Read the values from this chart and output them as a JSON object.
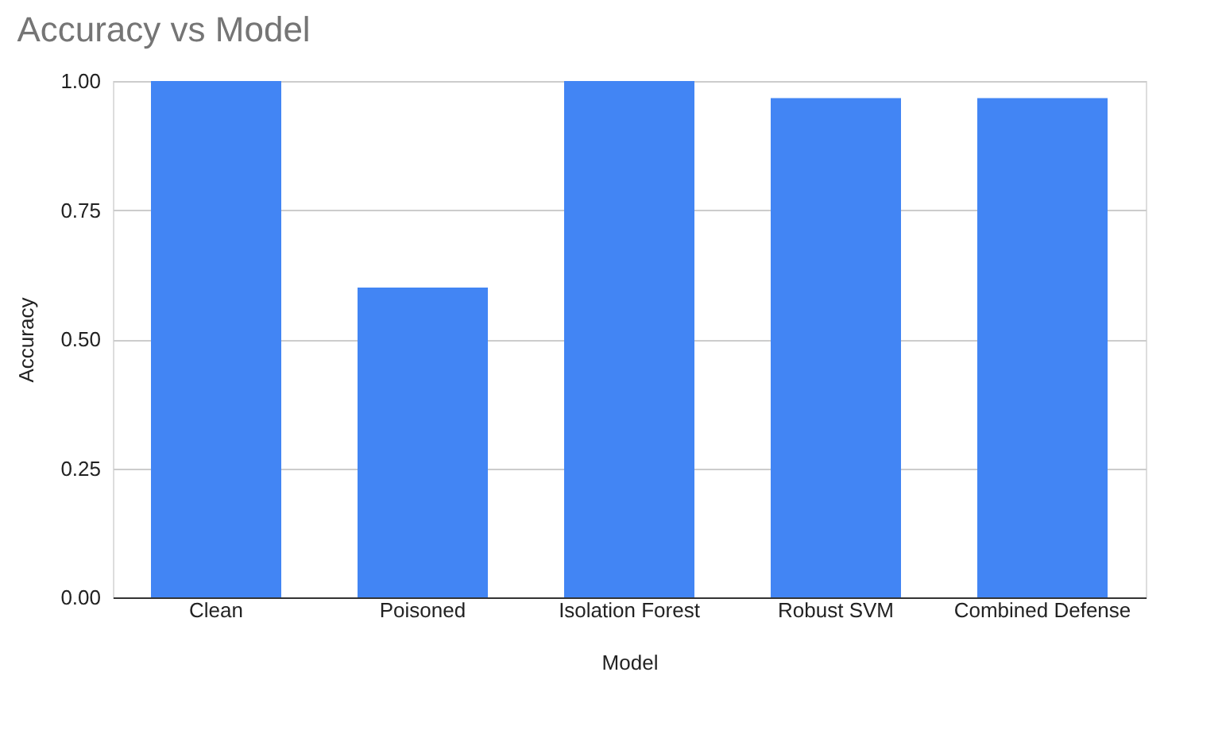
{
  "chart_data": {
    "type": "bar",
    "title": "Accuracy vs Model",
    "xlabel": "Model",
    "ylabel": "Accuracy",
    "categories": [
      "Clean",
      "Poisoned",
      "Isolation Forest",
      "Robust SVM",
      "Combined Defense"
    ],
    "series": [
      {
        "color": "#4285f4",
        "values": [
          1.0,
          0.6,
          1.0,
          0.967,
          0.967
        ]
      }
    ],
    "ylim": [
      0,
      1
    ],
    "yticks": [
      {
        "value": 0,
        "label": "0.00"
      },
      {
        "value": 0.25,
        "label": "0.25"
      },
      {
        "value": 0.5,
        "label": "0.50"
      },
      {
        "value": 0.75,
        "label": "0.75"
      },
      {
        "value": 1,
        "label": "1.00"
      }
    ],
    "grid": "y",
    "legend": false
  }
}
